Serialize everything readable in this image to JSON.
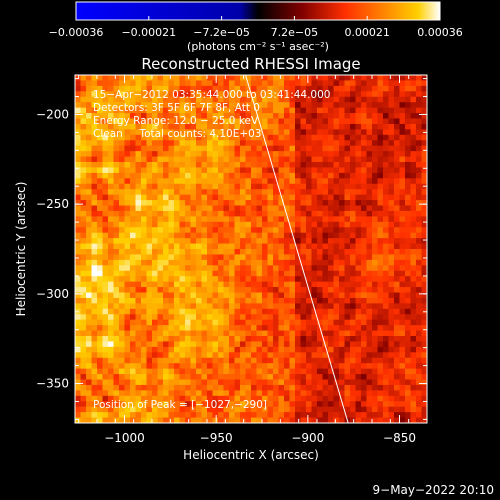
{
  "chart_data": {
    "type": "heatmap",
    "title": "Reconstructed RHESSI Image",
    "xlabel": "Heliocentric X (arcsec)",
    "ylabel": "Heliocentric Y (arcsec)",
    "xlim": [
      -1027,
      -835
    ],
    "ylim": [
      -372,
      -178
    ],
    "x_ticks": [
      -1000,
      -950,
      -900,
      -850
    ],
    "x_tick_labels": [
      "−1000",
      "−950",
      "−900",
      "−850"
    ],
    "y_ticks": [
      -200,
      -250,
      -300,
      -350
    ],
    "y_tick_labels": [
      "−200",
      "−250",
      "−300",
      "−350"
    ],
    "colorbar": {
      "range": [
        -0.00036,
        0.00036
      ],
      "tick_labels": [
        "−0.00036",
        "−0.00021",
        "−7.2e−05",
        "7.2e−05",
        "0.00021",
        "0.00036"
      ],
      "units_label": "(photons cm⁻² s⁻¹ asec⁻²)",
      "colormap": [
        "#0000ff",
        "#000000",
        "#800000",
        "#ff3000",
        "#ff9000",
        "#ffd000",
        "#ffffff"
      ]
    },
    "annotations": [
      "15−Apr−2012 03:35:44.000 to 03:41:44.000",
      "Detectors: 3F 5F 6F 7F 8F, Att 0",
      "Energy Range: 12.0 − 25.0 keV",
      "Clean     Total counts: 4.10E+03"
    ],
    "peak_label": "Position of Peak = [−1027,−290]",
    "peak": [
      -1027,
      -290
    ],
    "limb_line": [
      [
        -934,
        -178
      ],
      [
        -878,
        -372
      ]
    ],
    "grid": false
  },
  "footer": {
    "date": "9−May−2022 20:10"
  }
}
